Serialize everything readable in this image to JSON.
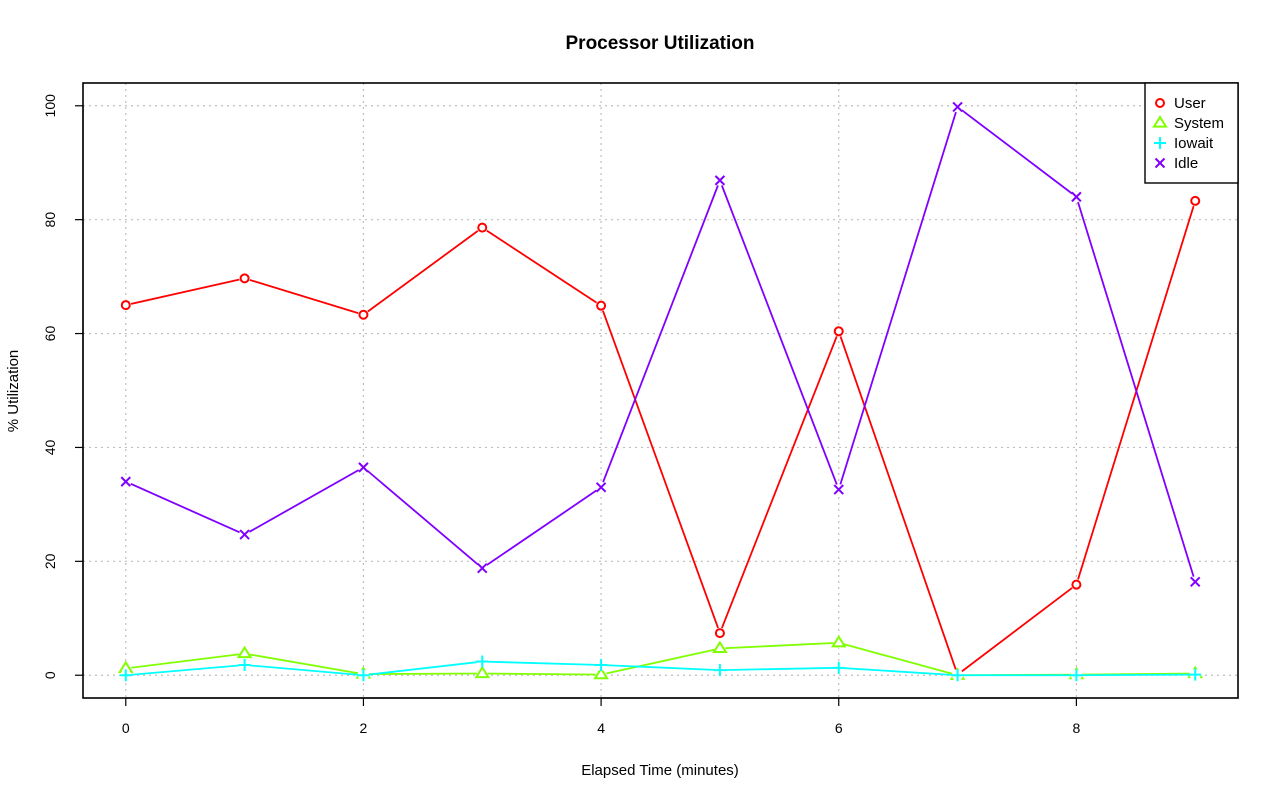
{
  "chart_data": {
    "type": "line",
    "title": "Processor Utilization",
    "xlabel": "Elapsed Time (minutes)",
    "ylabel": "% Utilization",
    "x": [
      0,
      1,
      2,
      3,
      4,
      5,
      6,
      7,
      8,
      9
    ],
    "xlim": [
      -0.36,
      9.36
    ],
    "ylim": [
      -4,
      104
    ],
    "xticks": [
      0,
      2,
      4,
      6,
      8
    ],
    "yticks": [
      0,
      20,
      40,
      60,
      80,
      100
    ],
    "grid": true,
    "legend_position": "top-right",
    "series": [
      {
        "name": "User",
        "color": "#ff0000",
        "marker": "circle",
        "values": [
          65.0,
          69.7,
          63.3,
          78.6,
          64.9,
          7.4,
          60.4,
          0.1,
          15.9,
          83.3
        ]
      },
      {
        "name": "System",
        "color": "#80ff00",
        "marker": "triangle",
        "values": [
          1.2,
          3.8,
          0.2,
          0.3,
          0.1,
          4.7,
          5.7,
          0.0,
          0.1,
          0.3
        ]
      },
      {
        "name": "Iowait",
        "color": "#00ffff",
        "marker": "plus",
        "values": [
          0.0,
          1.8,
          0.0,
          2.4,
          1.8,
          0.9,
          1.3,
          0.0,
          0.0,
          0.1
        ]
      },
      {
        "name": "Idle",
        "color": "#8000ff",
        "marker": "cross",
        "values": [
          34.0,
          24.7,
          36.5,
          18.8,
          33.0,
          86.9,
          32.6,
          99.8,
          84.0,
          16.4
        ]
      }
    ]
  }
}
